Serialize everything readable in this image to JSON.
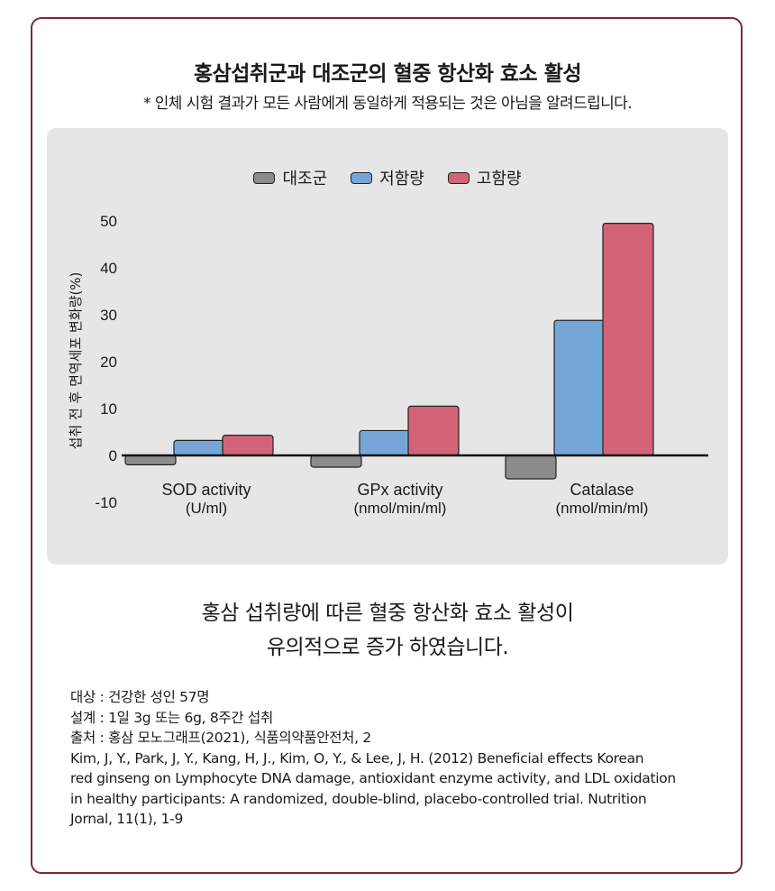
{
  "chart_data": {
    "type": "bar",
    "title": "홍삼섭취군과 대조군의 혈중 항산화 효소 활성",
    "subtitle": "* 인체 시험 결과가 모든 사람에게 동일하게 적용되는 것은 아님을 알려드립니다.",
    "ylabel": "섭취 전 후 면역세포 변화량(%)",
    "xlabel": "",
    "categories": [
      {
        "name": "SOD activity",
        "unit": "(U/ml)"
      },
      {
        "name": "GPx activity",
        "unit": "(nmol/min/ml)"
      },
      {
        "name": "Catalase",
        "unit": "(nmol/min/ml)"
      }
    ],
    "series": [
      {
        "name": "대조군",
        "color": "#8c8c8c",
        "values": [
          -2,
          -2.5,
          -5
        ]
      },
      {
        "name": "저함량",
        "color": "#74a7d8",
        "values": [
          3.2,
          5.3,
          28.8
        ]
      },
      {
        "name": "고함량",
        "color": "#d36377",
        "values": [
          4.3,
          10.5,
          49.5
        ]
      }
    ],
    "yticks": [
      "50",
      "40",
      "30",
      "20",
      "10",
      "0",
      "-10"
    ],
    "ylim": [
      -10,
      50
    ],
    "grid": false,
    "legend": "top-center"
  },
  "headline": {
    "line1": "홍삼 섭취량에 따른 혈중 항산화 효소 활성이",
    "line2": "유의적으로 증가 하였습니다."
  },
  "notes": {
    "subject": "대상 : 건강한 성인 57명",
    "design": "설계 : 1일 3g 또는 6g, 8주간 섭취",
    "source": "출처 : 홍삼 모노그래프(2021), 식품의약품안전처, 2",
    "ref1": "Kim, J, Y., Park, J, Y., Kang, H, J., Kim, O, Y., & Lee, J, H. (2012) Beneficial effects Korean",
    "ref2": "red ginseng on Lymphocyte DNA damage, antioxidant enzyme activity, and LDL oxidation",
    "ref3": "in healthy participants: A randomized, double-blind, placebo-controlled trial. Nutrition",
    "ref4": "Jornal, 11(1), 1-9"
  }
}
